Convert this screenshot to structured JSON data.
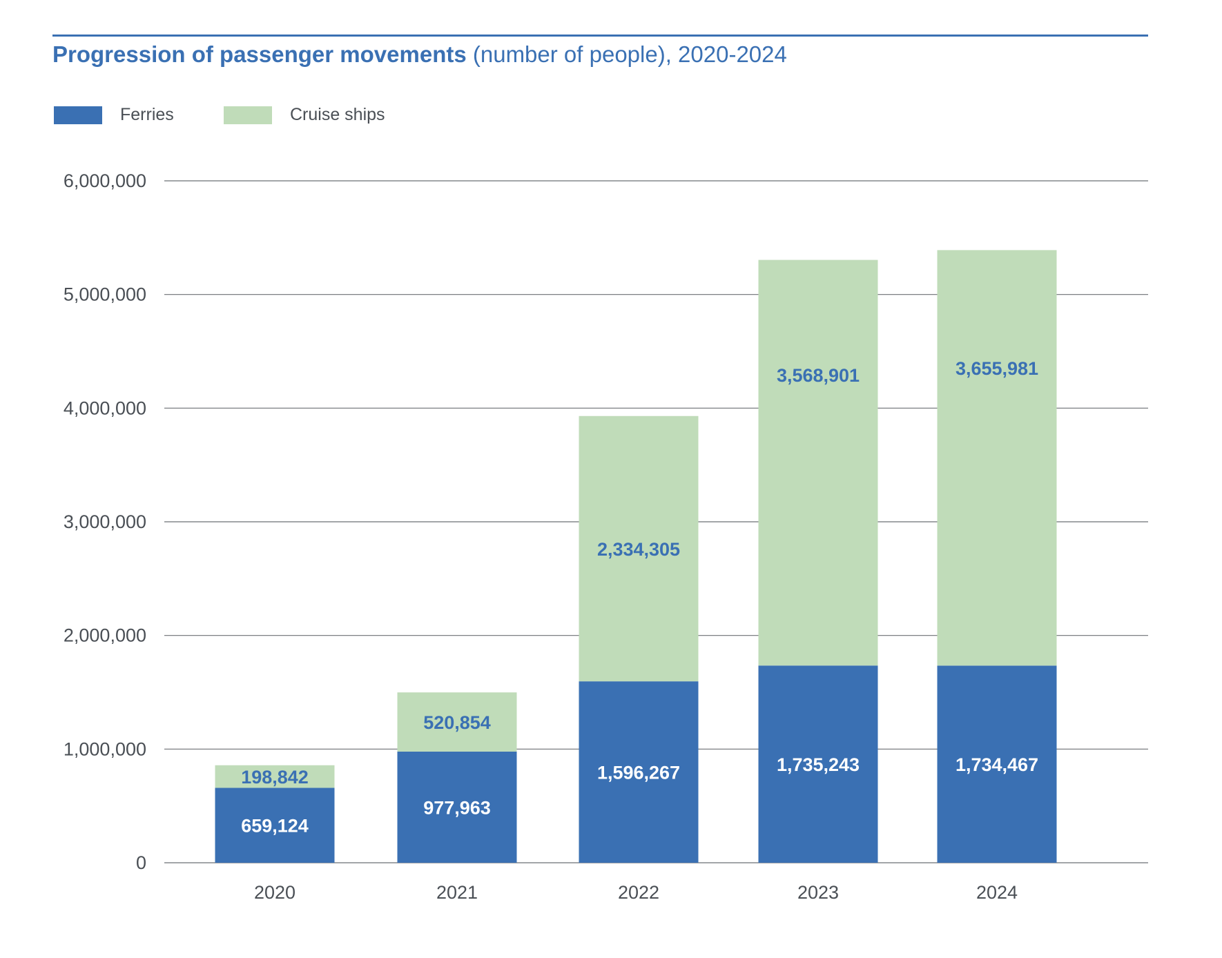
{
  "chart_data": {
    "type": "bar",
    "stacked": true,
    "title": "Progression of passenger movements",
    "subtitle": "(number of people), 2020-2024",
    "xlabel": "",
    "ylabel": "",
    "categories": [
      "2020",
      "2021",
      "2022",
      "2023",
      "2024"
    ],
    "series": [
      {
        "name": "Ferries",
        "color": "#3a70b3",
        "label_color": "#ffffff",
        "values": [
          659124,
          977963,
          1596267,
          1735243,
          1734467
        ],
        "labels": [
          "659,124",
          "977,963",
          "1,596,267",
          "1,735,243",
          "1,734,467"
        ]
      },
      {
        "name": "Cruise ships",
        "color": "#c0dcb9",
        "label_color": "#3a70b3",
        "values": [
          198842,
          520854,
          2334305,
          3568901,
          3655981
        ],
        "labels": [
          "198,842",
          "520,854",
          "2,334,305",
          "3,568,901",
          "3,655,981"
        ]
      }
    ],
    "ylim": [
      0,
      6000000
    ],
    "yticks": [
      0,
      1000000,
      2000000,
      3000000,
      4000000,
      5000000,
      6000000
    ],
    "ytick_labels": [
      "0",
      "1,000,000",
      "2,000,000",
      "3,000,000",
      "4,000,000",
      "5,000,000",
      "6,000,000"
    ],
    "grid": true,
    "legend_position": "top-left"
  }
}
